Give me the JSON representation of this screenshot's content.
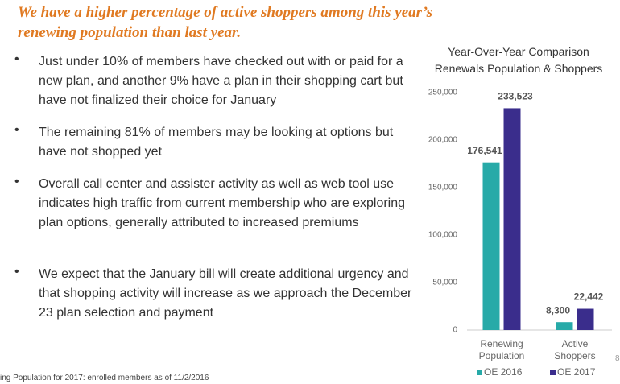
{
  "header": {
    "title_lines": [
      "We have a higher percentage of active shoppers among this year’s",
      "renewing population than last year."
    ]
  },
  "bullets": [
    "Just under 10% of members have checked out with or paid for a new plan, and another 9% have a plan in their shopping cart but have not finalized their choice for January",
    "The remaining 81% of members may be looking at options but have not shopped yet",
    "Overall call center and assister activity as well as web tool use indicates high traffic from current membership who are exploring plan options, generally attributed to increased premiums",
    "We expect that the January bill will create additional urgency and that shopping activity will increase as we approach the December 23 plan selection and payment"
  ],
  "footnote": "ing Population for 2017: enrolled members as of 11/2/2016",
  "page_number": "8",
  "chart_data": {
    "type": "bar",
    "title": "Year-Over-Year Comparison Renewals Population & Shoppers",
    "categories": [
      "Renewing Population",
      "Active Shoppers"
    ],
    "series": [
      {
        "name": "OE 2016",
        "color": "#27aaa8",
        "values": [
          176541,
          8300
        ],
        "value_labels": [
          "176,541",
          "8,300"
        ]
      },
      {
        "name": "OE 2017",
        "color": "#3a2d8c",
        "values": [
          233523,
          22442
        ],
        "value_labels": [
          "233,523",
          "22,442"
        ]
      }
    ],
    "ylim": [
      0,
      250000
    ],
    "yticks": [
      0,
      {
        "value": 50000,
        "label": "50,000"
      },
      {
        "value": 100000,
        "label": "100,000"
      },
      {
        "value": 150000,
        "label": "150,000"
      },
      {
        "value": 200000,
        "label": "200,000"
      },
      {
        "value": 250000,
        "label": "250,000"
      }
    ],
    "legend": "bottom"
  }
}
